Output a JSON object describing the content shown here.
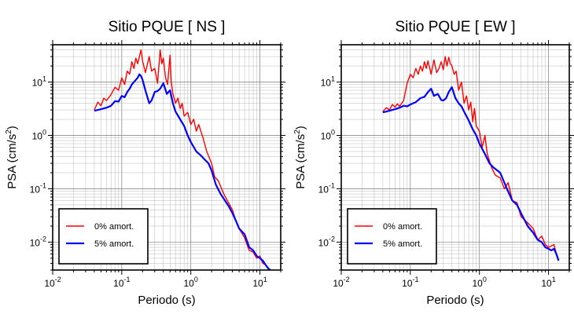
{
  "chart_data": [
    {
      "type": "line",
      "title": "Sitio PQUE [ NS ]",
      "xlabel": "Periodo (s)",
      "ylabel": "PSA (cm/s²)",
      "xscale": "log",
      "yscale": "log",
      "xlim": [
        0.01,
        20
      ],
      "ylim": [
        0.003,
        50
      ],
      "grid": true,
      "legend_position": "bottom-left",
      "series": [
        {
          "name": "0% amort.",
          "color": "#ff0000",
          "x": [
            0.04,
            0.045,
            0.05,
            0.055,
            0.06,
            0.07,
            0.08,
            0.09,
            0.1,
            0.11,
            0.12,
            0.13,
            0.14,
            0.15,
            0.16,
            0.17,
            0.18,
            0.19,
            0.2,
            0.22,
            0.25,
            0.27,
            0.3,
            0.33,
            0.36,
            0.38,
            0.4,
            0.43,
            0.46,
            0.5,
            0.52,
            0.55,
            0.6,
            0.65,
            0.7,
            0.75,
            0.8,
            0.9,
            1.0,
            1.1,
            1.2,
            1.3,
            1.5,
            1.7,
            2.0,
            2.2,
            2.5,
            3.0,
            3.5,
            4.0,
            4.5,
            5.0,
            6.0,
            7.0,
            8.0,
            9.0,
            10.0,
            11.0,
            12.0,
            13.0,
            14.0
          ],
          "y": [
            3.0,
            4.2,
            3.6,
            5.0,
            4.5,
            5.8,
            8.0,
            7.0,
            12.0,
            9.0,
            16.0,
            14.0,
            24.0,
            18.0,
            28.0,
            22.0,
            30.0,
            40.0,
            25.0,
            15.0,
            30.0,
            16.0,
            18.0,
            9.5,
            40.0,
            22.0,
            28.0,
            12.0,
            9.0,
            32.0,
            10.0,
            6.0,
            4.0,
            5.0,
            3.2,
            4.0,
            2.3,
            2.7,
            1.6,
            2.0,
            1.2,
            1.6,
            0.9,
            0.5,
            0.3,
            0.17,
            0.14,
            0.08,
            0.055,
            0.04,
            0.025,
            0.018,
            0.012,
            0.007,
            0.0065,
            0.005,
            0.0055,
            0.004,
            0.0038,
            0.0032,
            0.0031
          ]
        },
        {
          "name": "5% amort.",
          "color": "#0000ff",
          "x": [
            0.04,
            0.05,
            0.06,
            0.07,
            0.08,
            0.09,
            0.1,
            0.11,
            0.12,
            0.13,
            0.14,
            0.15,
            0.16,
            0.17,
            0.18,
            0.19,
            0.2,
            0.22,
            0.25,
            0.27,
            0.3,
            0.33,
            0.36,
            0.4,
            0.45,
            0.5,
            0.55,
            0.6,
            0.7,
            0.8,
            0.9,
            1.0,
            1.2,
            1.4,
            1.6,
            1.8,
            2.0,
            2.3,
            2.7,
            3.0,
            3.5,
            4.0,
            4.5,
            5.0,
            6.0,
            7.0,
            8.0,
            9.0,
            10.0,
            11.0,
            12.0,
            13.0,
            14.0
          ],
          "y": [
            2.9,
            3.1,
            3.3,
            3.6,
            4.4,
            4.3,
            5.5,
            5.2,
            6.5,
            7.5,
            9.0,
            10.0,
            11.0,
            12.0,
            14.0,
            13.0,
            11.0,
            7.0,
            4.0,
            4.5,
            6.5,
            6.8,
            7.5,
            9.5,
            6.0,
            7.0,
            4.0,
            2.8,
            2.0,
            1.5,
            1.0,
            0.75,
            0.5,
            0.42,
            0.35,
            0.3,
            0.22,
            0.12,
            0.08,
            0.065,
            0.048,
            0.035,
            0.025,
            0.018,
            0.014,
            0.008,
            0.007,
            0.0055,
            0.005,
            0.0045,
            0.0038,
            0.0033,
            0.003
          ]
        }
      ]
    },
    {
      "type": "line",
      "title": "Sitio PQUE [ EW ]",
      "xlabel": "Periodo (s)",
      "ylabel": "PSA (cm/s²)",
      "xscale": "log",
      "yscale": "log",
      "xlim": [
        0.01,
        20
      ],
      "ylim": [
        0.003,
        50
      ],
      "grid": true,
      "legend_position": "bottom-left",
      "series": [
        {
          "name": "0% amort.",
          "color": "#ff0000",
          "x": [
            0.04,
            0.045,
            0.05,
            0.055,
            0.06,
            0.065,
            0.07,
            0.08,
            0.09,
            0.1,
            0.11,
            0.12,
            0.13,
            0.14,
            0.15,
            0.16,
            0.17,
            0.18,
            0.2,
            0.22,
            0.24,
            0.26,
            0.28,
            0.3,
            0.32,
            0.34,
            0.36,
            0.38,
            0.4,
            0.43,
            0.46,
            0.5,
            0.55,
            0.6,
            0.65,
            0.7,
            0.75,
            0.8,
            0.85,
            0.9,
            1.0,
            1.1,
            1.2,
            1.3,
            1.5,
            1.7,
            2.0,
            2.3,
            2.6,
            3.0,
            3.5,
            4.0,
            5.0,
            6.0,
            7.0,
            8.0,
            9.0,
            10.0,
            11.0,
            12.0,
            13.0,
            14.0
          ],
          "y": [
            2.8,
            3.3,
            3.0,
            3.8,
            3.4,
            3.9,
            3.5,
            4.5,
            9.5,
            14.0,
            12.0,
            18.0,
            14.0,
            20.0,
            16.0,
            24.0,
            18.0,
            25.0,
            14.0,
            26.0,
            15.0,
            18.0,
            24.0,
            17.0,
            30.0,
            20.0,
            29.0,
            22.0,
            20.0,
            14.0,
            16.0,
            7.0,
            10.0,
            4.0,
            5.5,
            3.0,
            4.2,
            1.8,
            3.2,
            1.5,
            1.2,
            0.6,
            1.0,
            0.45,
            0.25,
            0.18,
            0.16,
            0.1,
            0.13,
            0.06,
            0.055,
            0.03,
            0.023,
            0.018,
            0.011,
            0.013,
            0.009,
            0.008,
            0.0085,
            0.009,
            0.006,
            0.0045
          ]
        },
        {
          "name": "5% amort.",
          "color": "#0000ff",
          "x": [
            0.04,
            0.05,
            0.06,
            0.07,
            0.08,
            0.09,
            0.1,
            0.12,
            0.14,
            0.16,
            0.18,
            0.2,
            0.22,
            0.25,
            0.28,
            0.3,
            0.33,
            0.36,
            0.4,
            0.45,
            0.5,
            0.55,
            0.6,
            0.7,
            0.8,
            0.9,
            1.0,
            1.2,
            1.4,
            1.6,
            2.0,
            2.5,
            3.0,
            3.5,
            4.0,
            5.0,
            6.0,
            7.0,
            8.0,
            9.0,
            10.0,
            11.0,
            12.0,
            13.0,
            14.0
          ],
          "y": [
            2.7,
            2.9,
            3.1,
            3.3,
            3.6,
            3.5,
            3.8,
            4.2,
            5.0,
            5.3,
            6.5,
            7.5,
            5.5,
            6.0,
            4.6,
            4.5,
            5.0,
            6.5,
            8.0,
            5.0,
            4.0,
            3.5,
            2.8,
            1.9,
            1.3,
            1.0,
            0.7,
            0.45,
            0.3,
            0.25,
            0.2,
            0.1,
            0.06,
            0.05,
            0.035,
            0.02,
            0.015,
            0.011,
            0.01,
            0.008,
            0.0075,
            0.007,
            0.0075,
            0.006,
            0.0045
          ]
        }
      ]
    }
  ]
}
